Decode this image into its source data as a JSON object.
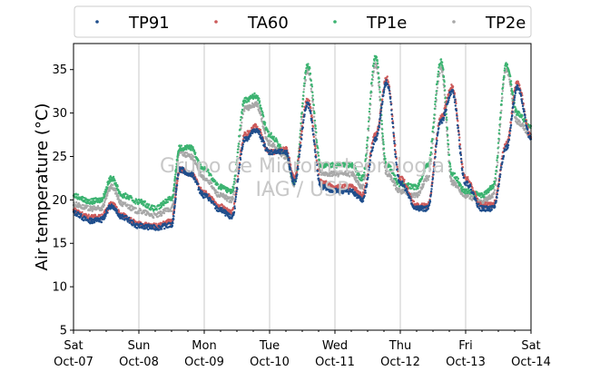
{
  "chart_data": {
    "type": "scatter",
    "ylabel": "Air temperature (°C)",
    "xlabel": "",
    "ylim": [
      5,
      38
    ],
    "yticks": [
      5,
      10,
      15,
      20,
      25,
      30,
      35
    ],
    "x_range": [
      "2023-10-07",
      "2023-10-14"
    ],
    "xticks": [
      {
        "date": "2023-10-07",
        "day": "Sat",
        "label": "Oct-07"
      },
      {
        "date": "2023-10-08",
        "day": "Sun",
        "label": "Oct-08"
      },
      {
        "date": "2023-10-09",
        "day": "Mon",
        "label": "Oct-09"
      },
      {
        "date": "2023-10-10",
        "day": "Tue",
        "label": "Oct-10"
      },
      {
        "date": "2023-10-11",
        "day": "Wed",
        "label": "Oct-11"
      },
      {
        "date": "2023-10-12",
        "day": "Thu",
        "label": "Oct-12"
      },
      {
        "date": "2023-10-13",
        "day": "Fri",
        "label": "Oct-13"
      },
      {
        "date": "2023-10-14",
        "day": "Sat",
        "label": "Oct-14"
      }
    ],
    "grid": "vertical",
    "legend_position": "top",
    "watermark": [
      "Grupo de Micrometeorologia",
      "IAG / USP"
    ],
    "series": [
      {
        "name": "TP91",
        "color": "#1f4e8c",
        "x": [
          "2023-10-07 00:00",
          "2023-10-07 06:00",
          "2023-10-07 10:00",
          "2023-10-07 14:00",
          "2023-10-07 18:00",
          "2023-10-08 00:00",
          "2023-10-08 06:00",
          "2023-10-08 12:00",
          "2023-10-08 15:00",
          "2023-10-08 19:00",
          "2023-10-09 00:00",
          "2023-10-09 06:00",
          "2023-10-09 10:00",
          "2023-10-09 15:00",
          "2023-10-09 19:00",
          "2023-10-10 00:00",
          "2023-10-10 06:00",
          "2023-10-10 09:00",
          "2023-10-10 14:00",
          "2023-10-10 19:00",
          "2023-10-11 00:00",
          "2023-10-11 06:00",
          "2023-10-11 10:00",
          "2023-10-11 15:00",
          "2023-10-11 19:00",
          "2023-10-12 00:00",
          "2023-10-12 06:00",
          "2023-10-12 10:00",
          "2023-10-12 15:00",
          "2023-10-12 19:00",
          "2023-10-13 00:00",
          "2023-10-13 06:00",
          "2023-10-13 10:00",
          "2023-10-13 15:00",
          "2023-10-13 19:00",
          "2023-10-14 00:00"
        ],
        "y": [
          18.5,
          17.6,
          17.7,
          19.3,
          18.0,
          17.0,
          16.8,
          17.1,
          23.5,
          23.0,
          20.5,
          18.8,
          18.0,
          27.0,
          28.0,
          25.5,
          25.5,
          22.0,
          31.0,
          21.5,
          21.0,
          21.0,
          20.0,
          27.0,
          33.5,
          22.0,
          19.0,
          19.0,
          29.0,
          32.5,
          22.0,
          19.0,
          19.0,
          26.0,
          33.0,
          27.0
        ]
      },
      {
        "name": "TA60",
        "color": "#cc5a5a",
        "x": [
          "2023-10-07 00:00",
          "2023-10-07 06:00",
          "2023-10-07 10:00",
          "2023-10-07 14:00",
          "2023-10-07 18:00",
          "2023-10-08 00:00",
          "2023-10-08 06:00",
          "2023-10-08 12:00",
          "2023-10-08 15:00",
          "2023-10-08 19:00",
          "2023-10-09 00:00",
          "2023-10-09 06:00",
          "2023-10-09 10:00",
          "2023-10-09 15:00",
          "2023-10-09 19:00",
          "2023-10-10 00:00",
          "2023-10-10 06:00",
          "2023-10-10 09:00",
          "2023-10-10 14:00",
          "2023-10-10 19:00",
          "2023-10-11 00:00",
          "2023-10-11 06:00",
          "2023-10-11 10:00",
          "2023-10-11 15:00",
          "2023-10-11 19:00",
          "2023-10-12 00:00",
          "2023-10-12 06:00",
          "2023-10-12 10:00",
          "2023-10-12 15:00",
          "2023-10-12 19:00",
          "2023-10-13 00:00",
          "2023-10-13 06:00",
          "2023-10-13 10:00",
          "2023-10-13 15:00",
          "2023-10-13 19:00",
          "2023-10-14 00:00"
        ],
        "y": [
          18.8,
          18.0,
          18.0,
          19.5,
          18.2,
          17.2,
          17.0,
          17.5,
          23.5,
          23.0,
          20.8,
          19.2,
          18.5,
          27.5,
          28.5,
          25.5,
          25.8,
          22.5,
          31.5,
          22.0,
          21.5,
          21.5,
          20.5,
          27.5,
          34.0,
          22.5,
          19.3,
          19.3,
          29.5,
          33.0,
          22.5,
          19.4,
          19.4,
          26.5,
          33.5,
          27.2
        ]
      },
      {
        "name": "TP1e",
        "color": "#3cb371",
        "x": [
          "2023-10-07 00:00",
          "2023-10-07 06:00",
          "2023-10-07 10:00",
          "2023-10-07 14:00",
          "2023-10-07 18:00",
          "2023-10-08 00:00",
          "2023-10-08 06:00",
          "2023-10-08 12:00",
          "2023-10-08 15:00",
          "2023-10-08 19:00",
          "2023-10-09 00:00",
          "2023-10-09 06:00",
          "2023-10-09 10:00",
          "2023-10-09 15:00",
          "2023-10-09 19:00",
          "2023-10-10 00:00",
          "2023-10-10 06:00",
          "2023-10-10 09:00",
          "2023-10-10 14:00",
          "2023-10-10 19:00",
          "2023-10-11 00:00",
          "2023-10-11 06:00",
          "2023-10-11 10:00",
          "2023-10-11 15:00",
          "2023-10-11 19:00",
          "2023-10-12 00:00",
          "2023-10-12 06:00",
          "2023-10-12 10:00",
          "2023-10-12 15:00",
          "2023-10-12 19:00",
          "2023-10-13 00:00",
          "2023-10-13 06:00",
          "2023-10-13 10:00",
          "2023-10-13 15:00",
          "2023-10-13 19:00",
          "2023-10-14 00:00"
        ],
        "y": [
          20.5,
          19.8,
          20.0,
          22.5,
          20.5,
          19.8,
          19.0,
          20.2,
          26.0,
          26.0,
          23.5,
          21.5,
          21.0,
          31.5,
          32.0,
          27.5,
          25.5,
          22.0,
          35.5,
          24.0,
          24.0,
          24.0,
          22.5,
          36.5,
          24.0,
          21.8,
          21.5,
          24.0,
          36.0,
          23.0,
          21.0,
          20.5,
          21.5,
          35.5,
          30.0,
          28.5
        ]
      },
      {
        "name": "TP2e",
        "color": "#a8a8a8",
        "x": [
          "2023-10-07 00:00",
          "2023-10-07 06:00",
          "2023-10-07 10:00",
          "2023-10-07 14:00",
          "2023-10-07 18:00",
          "2023-10-08 00:00",
          "2023-10-08 06:00",
          "2023-10-08 12:00",
          "2023-10-08 15:00",
          "2023-10-08 19:00",
          "2023-10-09 00:00",
          "2023-10-09 06:00",
          "2023-10-09 10:00",
          "2023-10-09 15:00",
          "2023-10-09 19:00",
          "2023-10-10 00:00",
          "2023-10-10 06:00",
          "2023-10-10 09:00",
          "2023-10-10 14:00",
          "2023-10-10 19:00",
          "2023-10-11 00:00",
          "2023-10-11 06:00",
          "2023-10-11 10:00",
          "2023-10-11 15:00",
          "2023-10-11 19:00",
          "2023-10-12 00:00",
          "2023-10-12 06:00",
          "2023-10-12 10:00",
          "2023-10-12 15:00",
          "2023-10-12 19:00",
          "2023-10-13 00:00",
          "2023-10-13 06:00",
          "2023-10-13 10:00",
          "2023-10-13 15:00",
          "2023-10-13 19:00",
          "2023-10-14 00:00"
        ],
        "y": [
          19.5,
          19.0,
          19.0,
          21.5,
          19.5,
          18.7,
          18.2,
          19.0,
          25.5,
          25.0,
          22.5,
          20.5,
          20.0,
          30.5,
          31.0,
          26.5,
          25.0,
          21.8,
          34.8,
          23.0,
          23.0,
          23.0,
          21.5,
          35.5,
          23.0,
          21.0,
          20.5,
          22.5,
          35.0,
          22.0,
          20.5,
          19.8,
          20.5,
          35.0,
          29.0,
          27.5
        ]
      }
    ]
  }
}
